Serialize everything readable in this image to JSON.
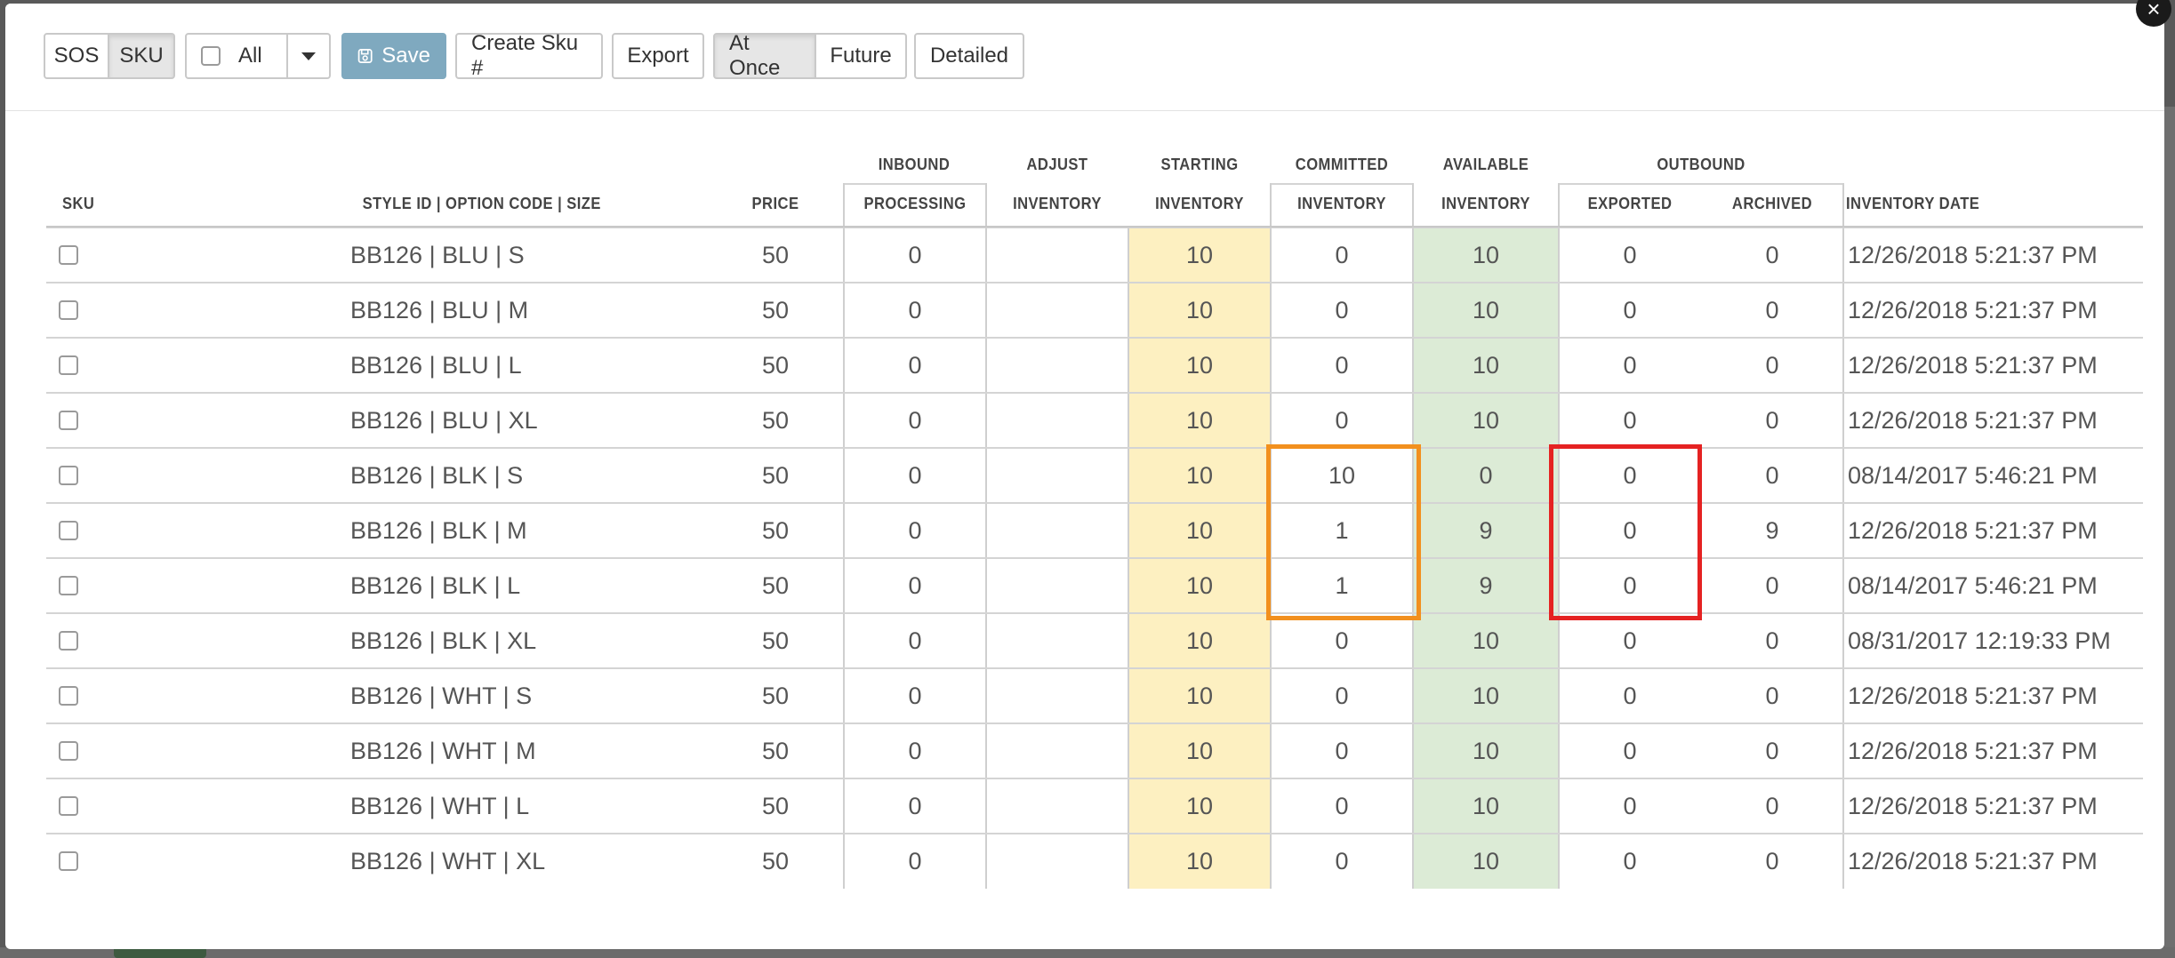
{
  "toolbar": {
    "mode_buttons": [
      "SOS",
      "SKU"
    ],
    "filter_label": "All",
    "save_label": "Save",
    "create_sku_label": "Create Sku #",
    "export_label": "Export",
    "timing_buttons": [
      "At Once",
      "Future"
    ],
    "detailed_label": "Detailed",
    "close_label": "×"
  },
  "table": {
    "group_headers": {
      "inbound": "INBOUND",
      "outbound": "OUTBOUND"
    },
    "columns": {
      "sku": "SKU",
      "style": "STYLE ID | OPTION CODE | SIZE",
      "price": "PRICE",
      "processing": "PROCESSING",
      "adjust_top": "ADJUST",
      "adjust_bottom": "INVENTORY",
      "starting_top": "STARTING",
      "starting_bottom": "INVENTORY",
      "committed_top": "COMMITTED",
      "committed_bottom": "INVENTORY",
      "available_top": "AVAILABLE",
      "available_bottom": "INVENTORY",
      "exported": "EXPORTED",
      "archived": "ARCHIVED",
      "inventory_date": "INVENTORY DATE"
    },
    "rows": [
      {
        "style": "BB126 | BLU | S",
        "price": "50",
        "processing": "0",
        "adjust": "",
        "starting": "10",
        "committed": "0",
        "available": "10",
        "exported": "0",
        "archived": "0",
        "date": "12/26/2018 5:21:37 PM"
      },
      {
        "style": "BB126 | BLU | M",
        "price": "50",
        "processing": "0",
        "adjust": "",
        "starting": "10",
        "committed": "0",
        "available": "10",
        "exported": "0",
        "archived": "0",
        "date": "12/26/2018 5:21:37 PM"
      },
      {
        "style": "BB126 | BLU | L",
        "price": "50",
        "processing": "0",
        "adjust": "",
        "starting": "10",
        "committed": "0",
        "available": "10",
        "exported": "0",
        "archived": "0",
        "date": "12/26/2018 5:21:37 PM"
      },
      {
        "style": "BB126 | BLU | XL",
        "price": "50",
        "processing": "0",
        "adjust": "",
        "starting": "10",
        "committed": "0",
        "available": "10",
        "exported": "0",
        "archived": "0",
        "date": "12/26/2018 5:21:37 PM"
      },
      {
        "style": "BB126 | BLK | S",
        "price": "50",
        "processing": "0",
        "adjust": "",
        "starting": "10",
        "committed": "10",
        "available": "0",
        "exported": "0",
        "archived": "0",
        "date": "08/14/2017 5:46:21 PM"
      },
      {
        "style": "BB126 | BLK | M",
        "price": "50",
        "processing": "0",
        "adjust": "",
        "starting": "10",
        "committed": "1",
        "available": "9",
        "exported": "0",
        "archived": "9",
        "date": "12/26/2018 5:21:37 PM"
      },
      {
        "style": "BB126 | BLK | L",
        "price": "50",
        "processing": "0",
        "adjust": "",
        "starting": "10",
        "committed": "1",
        "available": "9",
        "exported": "0",
        "archived": "0",
        "date": "08/14/2017 5:46:21 PM"
      },
      {
        "style": "BB126 | BLK | XL",
        "price": "50",
        "processing": "0",
        "adjust": "",
        "starting": "10",
        "committed": "0",
        "available": "10",
        "exported": "0",
        "archived": "0",
        "date": "08/31/2017 12:19:33 PM"
      },
      {
        "style": "BB126 | WHT | S",
        "price": "50",
        "processing": "0",
        "adjust": "",
        "starting": "10",
        "committed": "0",
        "available": "10",
        "exported": "0",
        "archived": "0",
        "date": "12/26/2018 5:21:37 PM"
      },
      {
        "style": "BB126 | WHT | M",
        "price": "50",
        "processing": "0",
        "adjust": "",
        "starting": "10",
        "committed": "0",
        "available": "10",
        "exported": "0",
        "archived": "0",
        "date": "12/26/2018 5:21:37 PM"
      },
      {
        "style": "BB126 | WHT | L",
        "price": "50",
        "processing": "0",
        "adjust": "",
        "starting": "10",
        "committed": "0",
        "available": "10",
        "exported": "0",
        "archived": "0",
        "date": "12/26/2018 5:21:37 PM"
      },
      {
        "style": "BB126 | WHT | XL",
        "price": "50",
        "processing": "0",
        "adjust": "",
        "starting": "10",
        "committed": "0",
        "available": "10",
        "exported": "0",
        "archived": "0",
        "date": "12/26/2018 5:21:37 PM"
      }
    ]
  },
  "colors": {
    "starting_bg": "#fdf0c1",
    "available_bg": "#dcebd6",
    "committed_highlight": "#f2901e",
    "exported_highlight": "#e52222",
    "save_bg": "#7fa9bf"
  }
}
